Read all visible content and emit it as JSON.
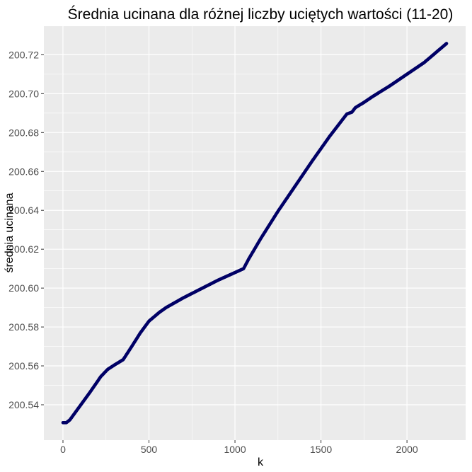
{
  "chart_data": {
    "type": "scatter",
    "title": "Średnia ucinana dla różnej liczby uciętych wartości (11-20)",
    "xlabel": "k",
    "ylabel": "średnia ucinana",
    "xlim": [
      -111,
      2341
    ],
    "ylim": [
      200.5218,
      200.7347
    ],
    "x_ticks": [
      0,
      500,
      1000,
      1500,
      2000
    ],
    "x_tick_labels": [
      "0",
      "500",
      "1000",
      "1500",
      "2000"
    ],
    "y_ticks": [
      200.54,
      200.56,
      200.58,
      200.6,
      200.62,
      200.64,
      200.66,
      200.68,
      200.7,
      200.72
    ],
    "y_tick_labels": [
      "200.54",
      "200.56",
      "200.58",
      "200.60",
      "200.62",
      "200.64",
      "200.66",
      "200.68",
      "200.70",
      "200.72"
    ],
    "grid": true,
    "background": "#ebebeb",
    "point_color": "#000066",
    "series": [
      {
        "x": [
          0,
          20,
          40,
          100,
          160,
          220,
          260,
          300,
          350,
          400,
          450,
          500,
          560,
          600,
          700,
          800,
          900,
          1000,
          1050,
          1080,
          1150,
          1250,
          1350,
          1450,
          1550,
          1650,
          1680,
          1700,
          1750,
          1800,
          1900,
          2000,
          2100,
          2230
        ],
        "y": [
          200.5308,
          200.5308,
          200.5322,
          200.5395,
          200.5468,
          200.5545,
          200.5582,
          200.5605,
          200.5632,
          200.57,
          200.577,
          200.583,
          200.5875,
          200.59,
          200.595,
          200.5995,
          200.604,
          200.608,
          200.61,
          200.615,
          200.6255,
          200.6395,
          200.6525,
          200.6655,
          200.678,
          200.6895,
          200.6905,
          200.6928,
          200.6955,
          200.6985,
          200.704,
          200.71,
          200.716,
          200.7258
        ]
      }
    ]
  }
}
